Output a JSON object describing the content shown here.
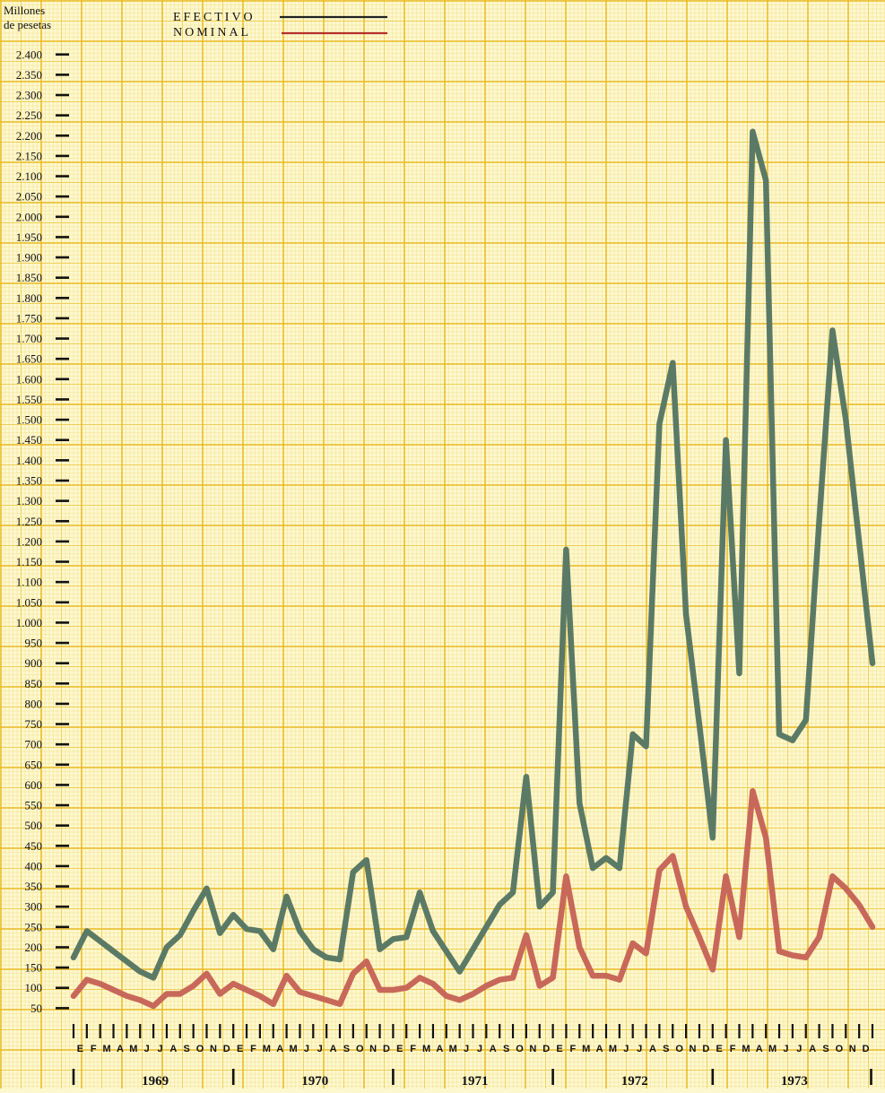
{
  "chart_data": {
    "type": "line",
    "ylabel": [
      "Millones",
      "de pesetas"
    ],
    "ylim": [
      0,
      2400
    ],
    "yticks": [
      50,
      100,
      150,
      200,
      250,
      300,
      350,
      400,
      450,
      500,
      550,
      600,
      650,
      700,
      750,
      800,
      850,
      900,
      950,
      1000,
      1050,
      1100,
      1150,
      1200,
      1250,
      1300,
      1350,
      1400,
      1450,
      1500,
      1550,
      1600,
      1650,
      1700,
      1750,
      1800,
      1850,
      1900,
      1950,
      2000,
      2050,
      2100,
      2150,
      2200,
      2250,
      2300,
      2350,
      2400
    ],
    "ytick_labels": [
      "50",
      "100",
      "150",
      "200",
      "250",
      "300",
      "350",
      "400",
      "450",
      "500",
      "550",
      "600",
      "650",
      "700",
      "750",
      "800",
      "850",
      "900",
      "950",
      "1.000",
      "1.050",
      "1.100",
      "1.150",
      "1.200",
      "1.250",
      "1.300",
      "1.350",
      "1.400",
      "1.450",
      "1.500",
      "1.550",
      "1.600",
      "1.650",
      "1.700",
      "1.750",
      "1.800",
      "1.850",
      "1.900",
      "1.950",
      "2.000",
      "2.050",
      "2.100",
      "2.150",
      "2.200",
      "2.250",
      "2.300",
      "2.350",
      "2.400"
    ],
    "month_letters": [
      "E",
      "F",
      "M",
      "A",
      "M",
      "J",
      "J",
      "A",
      "S",
      "O",
      "N",
      "D"
    ],
    "years": [
      "1969",
      "1970",
      "1971",
      "1972",
      "1973"
    ],
    "grid": true,
    "legend_placement": "top-center",
    "series": [
      {
        "name": "EFECTIVO",
        "color": "#5b7a66",
        "values": [
          175,
          240,
          215,
          190,
          165,
          140,
          125,
          200,
          230,
          290,
          345,
          235,
          280,
          245,
          240,
          195,
          325,
          240,
          195,
          175,
          170,
          385,
          415,
          195,
          220,
          225,
          335,
          240,
          190,
          140,
          195,
          250,
          305,
          335,
          620,
          300,
          335,
          1180,
          555,
          395,
          420,
          395,
          725,
          695,
          1490,
          1640,
          1020,
          750,
          470,
          1450,
          875,
          2210,
          2090,
          725,
          710,
          760,
          1250,
          1720,
          1500,
          1200,
          900
        ]
      },
      {
        "name": "NOMINAL",
        "color": "#c8685a",
        "values": [
          80,
          120,
          110,
          95,
          80,
          70,
          55,
          85,
          85,
          105,
          135,
          85,
          110,
          95,
          80,
          60,
          130,
          90,
          80,
          70,
          60,
          135,
          165,
          95,
          95,
          100,
          125,
          110,
          80,
          70,
          85,
          105,
          120,
          125,
          230,
          105,
          125,
          375,
          200,
          130,
          130,
          120,
          210,
          185,
          390,
          425,
          300,
          225,
          145,
          375,
          225,
          585,
          470,
          190,
          180,
          175,
          225,
          375,
          345,
          305,
          250
        ]
      }
    ]
  }
}
